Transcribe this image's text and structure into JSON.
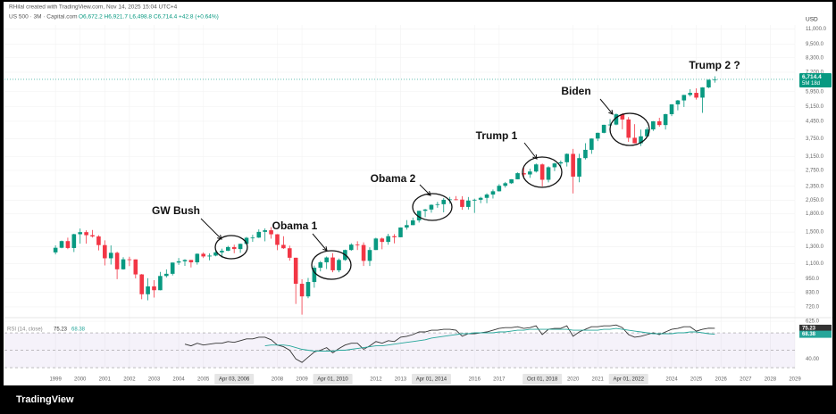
{
  "chart_data": {
    "type": "candlestick",
    "credit": "RHilal created with TradingView.com, Nov 14, 2025 15:04 UTC+4",
    "symbol": "US 500 · 3M · Capital.com",
    "ohlc_text": "O6,672.2 H6,921.7 L6,498.8 C6,714.4 +42.8 (+0.64%)",
    "currency": "USD",
    "logo": "TradingView",
    "log_scale": true,
    "grid": true,
    "up_color": "#089981",
    "down_color": "#f23645",
    "xlim": [
      1996.93,
      2029
    ],
    "ylim": [
      620,
      11450
    ],
    "xticks": [
      1999,
      2000,
      2001,
      2002,
      2003,
      2004,
      2005,
      2008,
      2009,
      2012,
      2013,
      2016,
      2017,
      2020,
      2021,
      2024,
      2025,
      2026,
      2027,
      2028,
      2029
    ],
    "x_markers": [
      {
        "value": 2006.25,
        "label": "Apr 03, 2006"
      },
      {
        "value": 2010.25,
        "label": "Apr 01, 2010"
      },
      {
        "value": 2014.25,
        "label": "Apr 01, 2014"
      },
      {
        "value": 2018.75,
        "label": "Oct 01, 2018"
      },
      {
        "value": 2022.25,
        "label": "Apr 01, 2022"
      }
    ],
    "yticks": [
      {
        "value": 625,
        "label": "625.0"
      },
      {
        "value": 720,
        "label": "720.0"
      },
      {
        "value": 830,
        "label": "830.0"
      },
      {
        "value": 950,
        "label": "950.0"
      },
      {
        "value": 1100,
        "label": "1,100.0"
      },
      {
        "value": 1300,
        "label": "1,300.0"
      },
      {
        "value": 1500,
        "label": "1,500.0"
      },
      {
        "value": 1800,
        "label": "1,800.0"
      },
      {
        "value": 2050,
        "label": "2,050.0"
      },
      {
        "value": 2350,
        "label": "2,350.0"
      },
      {
        "value": 2750,
        "label": "2,750.0"
      },
      {
        "value": 3150,
        "label": "3,150.0"
      },
      {
        "value": 3750,
        "label": "3,750.0"
      },
      {
        "value": 4450,
        "label": "4,450.0"
      },
      {
        "value": 5150,
        "label": "5,150.0"
      },
      {
        "value": 5950,
        "label": "5,950.0"
      },
      {
        "value": 7200,
        "label": "7,200.0"
      },
      {
        "value": 8300,
        "label": "8,300.0"
      },
      {
        "value": 9500,
        "label": "9,500.0"
      },
      {
        "value": 11000,
        "label": "11,000.0"
      }
    ],
    "last_price": {
      "value": 6714.4,
      "label": "6,714.4"
    },
    "countdown": "5M 18d",
    "x": [
      1999,
      1999.25,
      1999.5,
      1999.75,
      2000,
      2000.25,
      2000.5,
      2000.75,
      2001,
      2001.25,
      2001.5,
      2001.75,
      2002,
      2002.25,
      2002.5,
      2002.75,
      2003,
      2003.25,
      2003.5,
      2003.75,
      2004,
      2004.25,
      2004.5,
      2004.75,
      2005,
      2005.25,
      2005.5,
      2005.75,
      2006,
      2006.25,
      2006.5,
      2006.75,
      2007,
      2007.25,
      2007.5,
      2007.75,
      2008,
      2008.25,
      2008.5,
      2008.75,
      2009,
      2009.25,
      2009.5,
      2009.75,
      2010,
      2010.25,
      2010.5,
      2010.75,
      2011,
      2011.25,
      2011.5,
      2011.75,
      2012,
      2012.25,
      2012.5,
      2012.75,
      2013,
      2013.25,
      2013.5,
      2013.75,
      2014,
      2014.25,
      2014.5,
      2014.75,
      2015,
      2015.25,
      2015.5,
      2015.75,
      2016,
      2016.25,
      2016.5,
      2016.75,
      2017,
      2017.25,
      2017.5,
      2017.75,
      2018,
      2018.25,
      2018.5,
      2018.75,
      2019,
      2019.25,
      2019.5,
      2019.75,
      2020,
      2020.25,
      2020.5,
      2020.75,
      2021,
      2021.25,
      2021.5,
      2021.75,
      2022,
      2022.25,
      2022.5,
      2022.75,
      2023,
      2023.25,
      2023.5,
      2023.75,
      2024,
      2024.25,
      2024.5,
      2024.75,
      2025,
      2025.25,
      2025.5,
      2025.75
    ],
    "candles": [
      [
        1229,
        1317,
        1205,
        1286
      ],
      [
        1286,
        1380,
        1280,
        1373
      ],
      [
        1373,
        1420,
        1268,
        1283
      ],
      [
        1283,
        1475,
        1233,
        1469
      ],
      [
        1469,
        1553,
        1339,
        1499
      ],
      [
        1499,
        1527,
        1339,
        1455
      ],
      [
        1455,
        1531,
        1421,
        1437
      ],
      [
        1437,
        1454,
        1254,
        1320
      ],
      [
        1320,
        1383,
        1081,
        1160
      ],
      [
        1160,
        1316,
        1091,
        1224
      ],
      [
        1224,
        1238,
        945,
        1041
      ],
      [
        1041,
        1173,
        1037,
        1148
      ],
      [
        1148,
        1177,
        1074,
        1147
      ],
      [
        1147,
        1147,
        952,
        990
      ],
      [
        990,
        994,
        776,
        815
      ],
      [
        815,
        954,
        768,
        880
      ],
      [
        880,
        936,
        789,
        848
      ],
      [
        848,
        1015,
        847,
        975
      ],
      [
        975,
        1040,
        960,
        996
      ],
      [
        996,
        1112,
        980,
        1112
      ],
      [
        1112,
        1163,
        1087,
        1126
      ],
      [
        1126,
        1150,
        1076,
        1141
      ],
      [
        1141,
        1141,
        1060,
        1115
      ],
      [
        1115,
        1217,
        1090,
        1212
      ],
      [
        1212,
        1229,
        1163,
        1181
      ],
      [
        1181,
        1217,
        1137,
        1191
      ],
      [
        1191,
        1245,
        1183,
        1229
      ],
      [
        1229,
        1275,
        1168,
        1248
      ],
      [
        1248,
        1310,
        1245,
        1295
      ],
      [
        1295,
        1326,
        1219,
        1270
      ],
      [
        1270,
        1340,
        1224,
        1336
      ],
      [
        1336,
        1431,
        1327,
        1418
      ],
      [
        1418,
        1461,
        1363,
        1421
      ],
      [
        1421,
        1540,
        1416,
        1503
      ],
      [
        1503,
        1555,
        1370,
        1527
      ],
      [
        1527,
        1576,
        1406,
        1468
      ],
      [
        1468,
        1471,
        1256,
        1323
      ],
      [
        1323,
        1440,
        1272,
        1280
      ],
      [
        1280,
        1313,
        1133,
        1166
      ],
      [
        1166,
        1167,
        741,
        903
      ],
      [
        903,
        944,
        667,
        798
      ],
      [
        798,
        956,
        784,
        919
      ],
      [
        919,
        1080,
        869,
        1057
      ],
      [
        1057,
        1130,
        1020,
        1115
      ],
      [
        1115,
        1180,
        1044,
        1169
      ],
      [
        1169,
        1220,
        1011,
        1031
      ],
      [
        1031,
        1157,
        1011,
        1141
      ],
      [
        1141,
        1263,
        1131,
        1258
      ],
      [
        1258,
        1344,
        1249,
        1326
      ],
      [
        1326,
        1371,
        1258,
        1321
      ],
      [
        1321,
        1356,
        1075,
        1131
      ],
      [
        1131,
        1293,
        1075,
        1258
      ],
      [
        1258,
        1420,
        1258,
        1408
      ],
      [
        1408,
        1422,
        1267,
        1362
      ],
      [
        1362,
        1475,
        1325,
        1441
      ],
      [
        1441,
        1470,
        1343,
        1426
      ],
      [
        1426,
        1570,
        1426,
        1569
      ],
      [
        1569,
        1687,
        1536,
        1606
      ],
      [
        1606,
        1729,
        1604,
        1682
      ],
      [
        1682,
        1849,
        1647,
        1848
      ],
      [
        1848,
        1884,
        1737,
        1872
      ],
      [
        1872,
        1968,
        1814,
        1960
      ],
      [
        1960,
        2019,
        1904,
        1972
      ],
      [
        1972,
        2093,
        1820,
        2059
      ],
      [
        2059,
        2119,
        1981,
        2068
      ],
      [
        2068,
        2135,
        2048,
        2063
      ],
      [
        2063,
        2133,
        1867,
        1920
      ],
      [
        1920,
        2116,
        1872,
        2044
      ],
      [
        2044,
        2082,
        1810,
        2060
      ],
      [
        2060,
        2121,
        1992,
        2099
      ],
      [
        2099,
        2194,
        1992,
        2168
      ],
      [
        2168,
        2278,
        2084,
        2239
      ],
      [
        2239,
        2401,
        2233,
        2363
      ],
      [
        2363,
        2454,
        2322,
        2423
      ],
      [
        2423,
        2520,
        2406,
        2519
      ],
      [
        2519,
        2694,
        2519,
        2674
      ],
      [
        2674,
        2873,
        2533,
        2641
      ],
      [
        2641,
        2791,
        2554,
        2718
      ],
      [
        2718,
        2941,
        2691,
        2914
      ],
      [
        2914,
        2940,
        2346,
        2507
      ],
      [
        2507,
        2860,
        2443,
        2834
      ],
      [
        2834,
        2964,
        2728,
        2942
      ],
      [
        2942,
        3028,
        2822,
        2977
      ],
      [
        2977,
        3247,
        2855,
        3231
      ],
      [
        3231,
        3394,
        2192,
        2585
      ],
      [
        2585,
        3233,
        2447,
        3100
      ],
      [
        3100,
        3588,
        3058,
        3363
      ],
      [
        3363,
        3760,
        3233,
        3756
      ],
      [
        3756,
        3983,
        3663,
        3973
      ],
      [
        3973,
        4302,
        3954,
        4298
      ],
      [
        4298,
        4546,
        4250,
        4308
      ],
      [
        4308,
        4808,
        4279,
        4766
      ],
      [
        4766,
        4818,
        4115,
        4530
      ],
      [
        4530,
        4637,
        3637,
        3785
      ],
      [
        3785,
        4325,
        3585,
        3586
      ],
      [
        3586,
        4100,
        3492,
        3840
      ],
      [
        3840,
        4195,
        3809,
        4109
      ],
      [
        4109,
        4458,
        4048,
        4450
      ],
      [
        4450,
        4607,
        4216,
        4288
      ],
      [
        4288,
        4793,
        4104,
        4770
      ],
      [
        4770,
        5265,
        4683,
        5254
      ],
      [
        5254,
        5488,
        4954,
        5460
      ],
      [
        5460,
        5767,
        5119,
        5762
      ],
      [
        5762,
        6100,
        5674,
        5882
      ],
      [
        5882,
        6147,
        5505,
        5612
      ],
      [
        5612,
        6215,
        4835,
        6205
      ],
      [
        6205,
        6700,
        6160,
        6688
      ],
      [
        6672.2,
        6921.7,
        6498.8,
        6714.4
      ]
    ],
    "annotations": [
      "GW Bush",
      "Obama 1",
      "Obama 2",
      "Trump 1",
      "Biden",
      "Trump 2 ?"
    ],
    "rsi": {
      "title": "RSI (14, close)",
      "ylim": [
        29,
        85.4
      ],
      "yticks": [
        {
          "value": 40,
          "label": "40.00"
        }
      ],
      "bands": [
        70,
        50,
        30
      ],
      "band_color": "#7e57c2",
      "series": [
        {
          "name": "RSI",
          "color": "#333333",
          "value_label": "75.23",
          "values": [
            null,
            null,
            null,
            null,
            null,
            null,
            null,
            null,
            null,
            null,
            null,
            null,
            null,
            null,
            null,
            null,
            null,
            null,
            null,
            null,
            null,
            57,
            55,
            58,
            56,
            57,
            58,
            58,
            60,
            59,
            61,
            63,
            63,
            65,
            65,
            62,
            56,
            54,
            50,
            40,
            36,
            42,
            48,
            50,
            53,
            47,
            52,
            56,
            58,
            58,
            51,
            55,
            60,
            58,
            61,
            60,
            65,
            66,
            68,
            71,
            71,
            73,
            73,
            74,
            74,
            73,
            66,
            69,
            69,
            70,
            71,
            73,
            75,
            76,
            76,
            77,
            75,
            76,
            78,
            68,
            74,
            75,
            75,
            78,
            66,
            71,
            74,
            77,
            77,
            78,
            78,
            79,
            76,
            68,
            65,
            66,
            68,
            70,
            68,
            71,
            74,
            75,
            77,
            77,
            72,
            74,
            75.3,
            75.23
          ]
        },
        {
          "name": "RSI-based MA",
          "color": "#26a69a",
          "value_label": "68.38",
          "values": [
            null,
            null,
            null,
            null,
            null,
            null,
            null,
            null,
            null,
            null,
            null,
            null,
            null,
            null,
            null,
            null,
            null,
            null,
            null,
            null,
            null,
            null,
            null,
            null,
            null,
            null,
            null,
            null,
            null,
            null,
            null,
            null,
            null,
            null,
            55,
            56,
            56,
            56,
            55,
            53,
            51,
            50,
            49,
            49,
            49,
            49,
            50,
            50,
            51,
            52,
            53,
            54,
            55,
            55,
            56,
            57,
            58,
            59,
            60,
            61,
            62,
            64,
            65,
            66,
            67,
            68,
            69,
            69,
            70,
            70,
            70,
            70,
            71,
            71,
            72,
            73,
            73,
            74,
            74,
            74,
            74,
            74,
            74,
            74,
            73,
            73,
            73,
            73,
            73,
            74,
            74,
            75,
            74,
            73,
            72,
            71,
            70,
            69,
            69,
            69,
            69,
            70,
            70,
            71,
            71,
            70,
            69,
            68.38
          ]
        }
      ]
    }
  }
}
